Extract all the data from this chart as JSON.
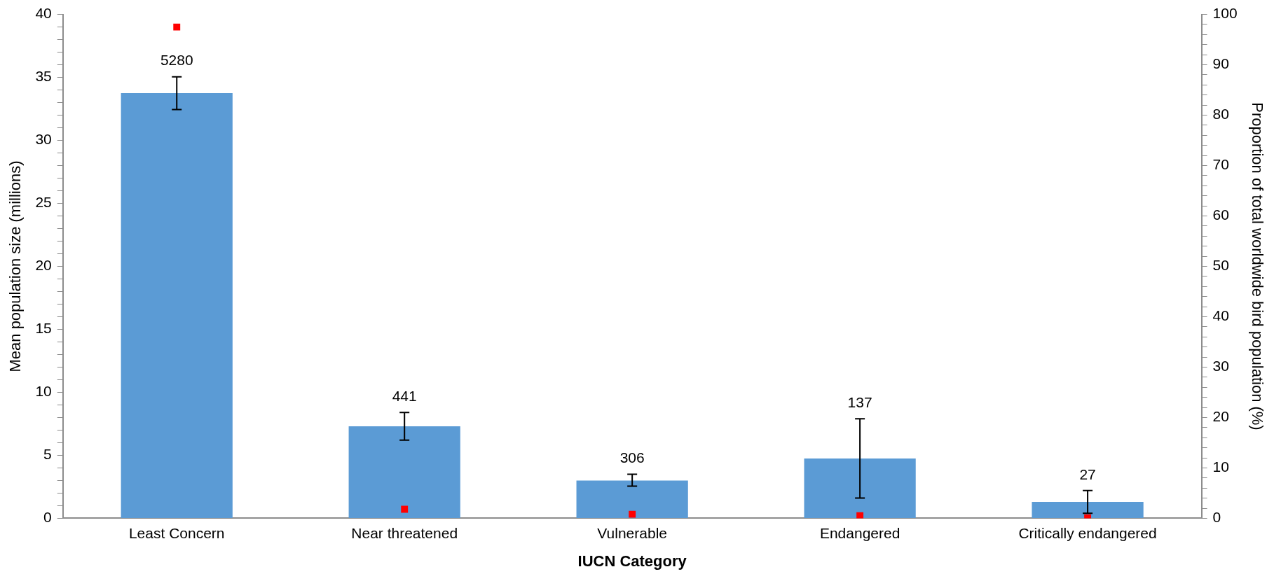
{
  "chart_data": {
    "type": "bar",
    "categories": [
      "Least Concern",
      "Near threatened",
      "Vulnerable",
      "Endangered",
      "Critically endangered"
    ],
    "xlabel": "IUCN Category",
    "ylabel": "Mean population size (millions)",
    "y2label": "Proportion of total worldwide bird population (%)",
    "series": [
      {
        "color": "#5b9bd5",
        "values": [
          33.75,
          7.3,
          3.0,
          4.75,
          1.3
        ],
        "errors": [
          [
            32.45,
            35.05
          ],
          [
            6.2,
            8.4
          ],
          [
            2.55,
            3.5
          ],
          [
            1.6,
            7.9
          ],
          [
            0.4,
            2.2
          ]
        ]
      },
      {
        "type": "scatter",
        "axis": "y2",
        "color": "#ff0000",
        "x": [
          "Least Concern",
          "Near threatened",
          "Vulnerable",
          "Endangered",
          "Critically endangered"
        ],
        "values": [
          97.5,
          1.8,
          0.8,
          0.5,
          0.1
        ]
      }
    ],
    "ylim": [
      0,
      40
    ],
    "yticks": [
      0,
      {
        "value": 1,
        "label": null
      },
      {
        "value": 2,
        "label": null
      },
      {
        "value": 3,
        "label": null
      },
      {
        "value": 4,
        "label": null
      },
      5,
      {
        "value": 6,
        "label": null
      },
      {
        "value": 7,
        "label": null
      },
      {
        "value": 8,
        "label": null
      },
      {
        "value": 9,
        "label": null
      },
      10,
      {
        "value": 11,
        "label": null
      },
      {
        "value": 12,
        "label": null
      },
      {
        "value": 13,
        "label": null
      },
      {
        "value": 14,
        "label": null
      },
      15,
      {
        "value": 16,
        "label": null
      },
      {
        "value": 17,
        "label": null
      },
      {
        "value": 18,
        "label": null
      },
      {
        "value": 19,
        "label": null
      },
      20,
      {
        "value": 21,
        "label": null
      },
      {
        "value": 22,
        "label": null
      },
      {
        "value": 23,
        "label": null
      },
      {
        "value": 24,
        "label": null
      },
      25,
      {
        "value": 26,
        "label": null
      },
      {
        "value": 27,
        "label": null
      },
      {
        "value": 28,
        "label": null
      },
      {
        "value": 29,
        "label": null
      },
      30,
      {
        "value": 31,
        "label": null
      },
      {
        "value": 32,
        "label": null
      },
      {
        "value": 33,
        "label": null
      },
      {
        "value": 34,
        "label": null
      },
      35,
      {
        "value": 36,
        "label": null
      },
      {
        "value": 37,
        "label": null
      },
      {
        "value": 38,
        "label": null
      },
      {
        "value": 39,
        "label": null
      },
      40
    ],
    "y2lim": [
      0,
      100
    ],
    "y2ticks": [
      0,
      {
        "value": 2,
        "label": null
      },
      {
        "value": 4,
        "label": null
      },
      {
        "value": 6,
        "label": null
      },
      {
        "value": 8,
        "label": null
      },
      10,
      {
        "value": 12,
        "label": null
      },
      {
        "value": 14,
        "label": null
      },
      {
        "value": 16,
        "label": null
      },
      {
        "value": 18,
        "label": null
      },
      20,
      {
        "value": 22,
        "label": null
      },
      {
        "value": 24,
        "label": null
      },
      {
        "value": 26,
        "label": null
      },
      {
        "value": 28,
        "label": null
      },
      30,
      {
        "value": 32,
        "label": null
      },
      {
        "value": 34,
        "label": null
      },
      {
        "value": 36,
        "label": null
      },
      {
        "value": 38,
        "label": null
      },
      40,
      {
        "value": 42,
        "label": null
      },
      {
        "value": 44,
        "label": null
      },
      {
        "value": 46,
        "label": null
      },
      {
        "value": 48,
        "label": null
      },
      50,
      {
        "value": 52,
        "label": null
      },
      {
        "value": 54,
        "label": null
      },
      {
        "value": 56,
        "label": null
      },
      {
        "value": 58,
        "label": null
      },
      60,
      {
        "value": 62,
        "label": null
      },
      {
        "value": 64,
        "label": null
      },
      {
        "value": 66,
        "label": null
      },
      {
        "value": 68,
        "label": null
      },
      70,
      {
        "value": 72,
        "label": null
      },
      {
        "value": 74,
        "label": null
      },
      {
        "value": 76,
        "label": null
      },
      {
        "value": 78,
        "label": null
      },
      80,
      {
        "value": 82,
        "label": null
      },
      {
        "value": 84,
        "label": null
      },
      {
        "value": 86,
        "label": null
      },
      {
        "value": 88,
        "label": null
      },
      90,
      {
        "value": 92,
        "label": null
      },
      {
        "value": 94,
        "label": null
      },
      {
        "value": 96,
        "label": null
      },
      {
        "value": 98,
        "label": null
      },
      100
    ],
    "annotations": [
      "5280",
      "441",
      "306",
      "137",
      "27"
    ],
    "marker": "square",
    "grid": false,
    "legend": false
  }
}
